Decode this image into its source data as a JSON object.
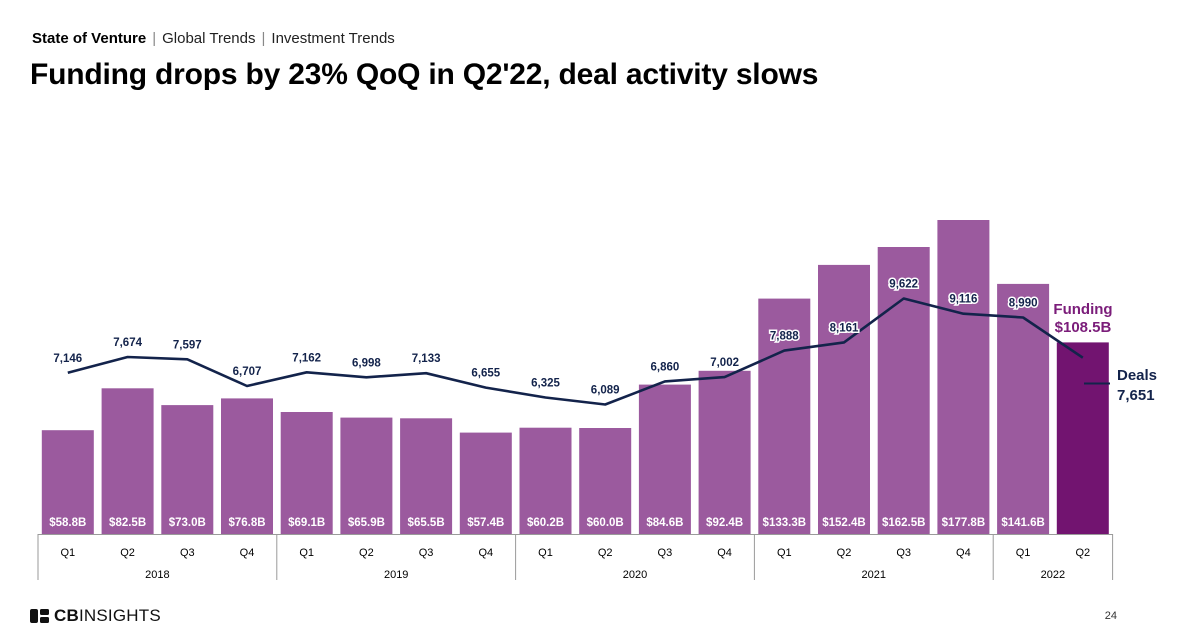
{
  "header": {
    "breadcrumb": [
      "State of Venture",
      "Global Trends",
      "Investment Trends"
    ],
    "title": "Funding drops by 23% QoQ in Q2'22, deal activity slows"
  },
  "footer": {
    "logo_text_bold": "CB",
    "logo_text": "INSIGHTS",
    "page_number": "24"
  },
  "colors": {
    "bar": "#9b5a9e",
    "bar_highlight": "#721470",
    "line": "#13234b",
    "funding_label": "#7b1d7a"
  },
  "chart_data": {
    "type": "bar+line",
    "quarters": [
      "Q1",
      "Q2",
      "Q3",
      "Q4",
      "Q1",
      "Q2",
      "Q3",
      "Q4",
      "Q1",
      "Q2",
      "Q3",
      "Q4",
      "Q1",
      "Q2",
      "Q3",
      "Q4",
      "Q1",
      "Q2"
    ],
    "years": [
      {
        "label": "2018",
        "span": 4
      },
      {
        "label": "2019",
        "span": 4
      },
      {
        "label": "2020",
        "span": 4
      },
      {
        "label": "2021",
        "span": 4
      },
      {
        "label": "2022",
        "span": 2
      }
    ],
    "series": [
      {
        "name": "Funding",
        "type": "bar",
        "unit": "$B",
        "values": [
          58.8,
          82.5,
          73.0,
          76.8,
          69.1,
          65.9,
          65.5,
          57.4,
          60.2,
          60.0,
          84.6,
          92.4,
          133.3,
          152.4,
          162.5,
          177.8,
          141.6,
          108.5
        ],
        "labels": [
          "$58.8B",
          "$82.5B",
          "$73.0B",
          "$76.8B",
          "$69.1B",
          "$65.9B",
          "$65.5B",
          "$57.4B",
          "$60.2B",
          "$60.0B",
          "$84.6B",
          "$92.4B",
          "$133.3B",
          "$152.4B",
          "$162.5B",
          "$177.8B",
          "$141.6B",
          ""
        ]
      },
      {
        "name": "Deals",
        "type": "line",
        "values": [
          7146,
          7674,
          7597,
          6707,
          7162,
          6998,
          7133,
          6655,
          6325,
          6089,
          6860,
          7002,
          7888,
          8161,
          9622,
          9116,
          8990,
          7651
        ],
        "labels": [
          "7,146",
          "7,674",
          "7,597",
          "6,707",
          "7,162",
          "6,998",
          "7,133",
          "6,655",
          "6,325",
          "6,089",
          "6,860",
          "7,002",
          "7,888",
          "8,161",
          "9,622",
          "9,116",
          "8,990",
          ""
        ]
      }
    ],
    "callouts": {
      "funding_name": "Funding",
      "funding_value": "$108.5B",
      "deals_name": "Deals",
      "deals_value": "7,651"
    }
  }
}
